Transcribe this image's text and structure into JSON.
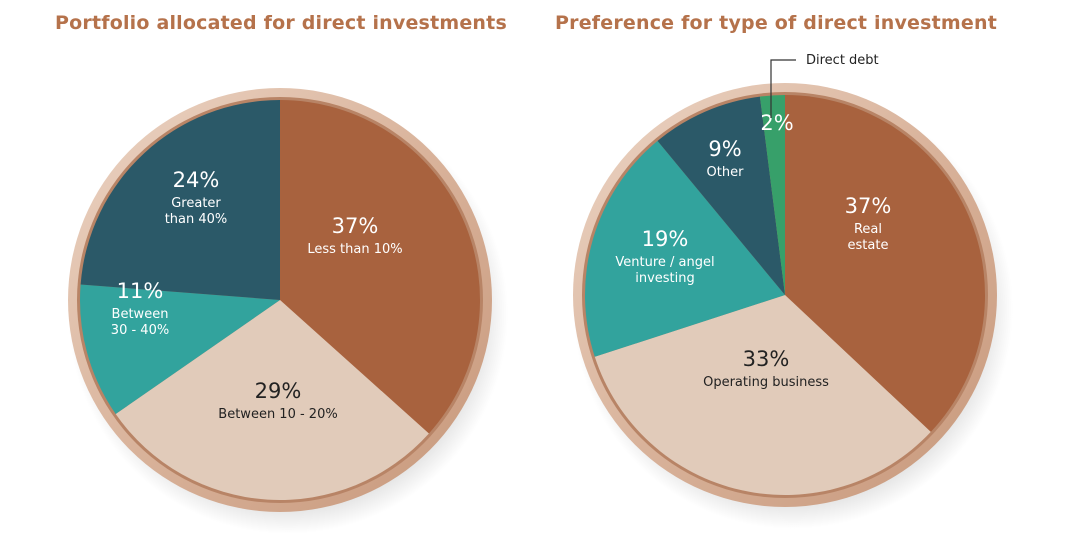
{
  "chart_data": [
    {
      "type": "pie",
      "title": "Portfolio allocated for direct investments",
      "slices": [
        {
          "value": 37,
          "pct_label": "37%",
          "label_lines": [
            "Less than 10%"
          ],
          "color": "#a8623e",
          "text_color": "#ffffff"
        },
        {
          "value": 29,
          "pct_label": "29%",
          "label_lines": [
            "Between 10 - 20%"
          ],
          "color": "#e1cbba",
          "text_color": "#222222"
        },
        {
          "value": 11,
          "pct_label": "11%",
          "label_lines": [
            "Between",
            "30 - 40%"
          ],
          "color": "#32a39d",
          "text_color": "#ffffff"
        },
        {
          "value": 24,
          "pct_label": "24%",
          "label_lines": [
            "Greater",
            "than 40%"
          ],
          "color": "#2b5968",
          "text_color": "#ffffff"
        }
      ]
    },
    {
      "type": "pie",
      "title": "Preference for type of direct investment",
      "slices": [
        {
          "value": 37,
          "pct_label": "37%",
          "label_lines": [
            "Real",
            "estate"
          ],
          "color": "#a8623e",
          "text_color": "#ffffff"
        },
        {
          "value": 33,
          "pct_label": "33%",
          "label_lines": [
            "Operating business"
          ],
          "color": "#e1cbba",
          "text_color": "#222222"
        },
        {
          "value": 19,
          "pct_label": "19%",
          "label_lines": [
            "Venture / angel",
            "investing"
          ],
          "color": "#32a39d",
          "text_color": "#ffffff"
        },
        {
          "value": 9,
          "pct_label": "9%",
          "label_lines": [
            "Other"
          ],
          "color": "#2b5968",
          "text_color": "#ffffff"
        },
        {
          "value": 2,
          "pct_label": "2%",
          "label_lines": [],
          "color": "#37a06a",
          "text_color": "#ffffff"
        }
      ],
      "callout_label": "Direct debt"
    }
  ]
}
